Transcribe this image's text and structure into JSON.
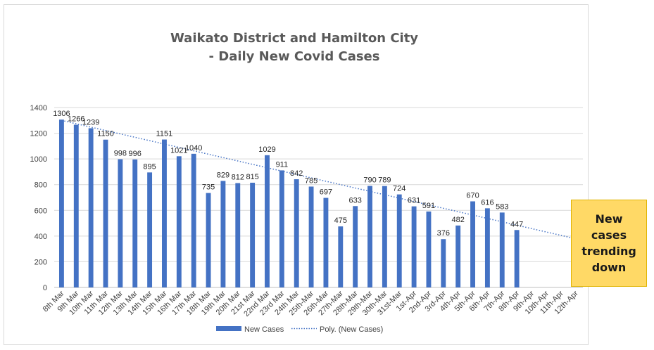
{
  "chart_data": {
    "type": "bar",
    "title_lines": [
      "Waikato District and Hamilton City",
      "- Daily New Covid Cases"
    ],
    "categories": [
      "8th Mar",
      "9th Mar",
      "10th Mar",
      "11th Mar",
      "12th Mar",
      "13th Mar",
      "14th Mar",
      "15th Mar",
      "16th Mar",
      "17th Mar",
      "18th Mar",
      "19th Mar",
      "20th Mar",
      "21st Mar",
      "22nd Mar",
      "23rd Mar",
      "24th Mar",
      "25th-Mar",
      "26th-Mar",
      "27th-Mar",
      "28th-Mar",
      "29th-Mar",
      "30th-Mar",
      "31st-Mar",
      "1st-Apr",
      "2nd-Apr",
      "3rd-Apr",
      "4th-Apr",
      "5th-Apr",
      "6th-Apr",
      "7th-Apr",
      "8th-Apr",
      "9th-Apr",
      "10th-Apr",
      "11th-Apr",
      "12th-Apr"
    ],
    "series": [
      {
        "name": "New Cases",
        "color": "#4472c4",
        "values": [
          1306,
          1266,
          1239,
          1150,
          998,
          996,
          895,
          1151,
          1021,
          1040,
          735,
          829,
          812,
          815,
          1029,
          911,
          842,
          785,
          697,
          475,
          633,
          790,
          789,
          724,
          631,
          591,
          376,
          482,
          670,
          616,
          583,
          447,
          null,
          null,
          null,
          null
        ]
      }
    ],
    "trendline": {
      "name": "Poly. (New Cases)",
      "color": "#4472c4",
      "style": "dotted",
      "start": 1300,
      "end": 385
    },
    "ylim": [
      0,
      1400
    ],
    "yticks": [
      0,
      200,
      400,
      600,
      800,
      1000,
      1200,
      1400
    ],
    "grid": true,
    "legend_position": "bottom",
    "xlabel": "",
    "ylabel": ""
  },
  "callout": {
    "text": "New\ncases\ntrending\ndown",
    "background": "#ffd966"
  }
}
